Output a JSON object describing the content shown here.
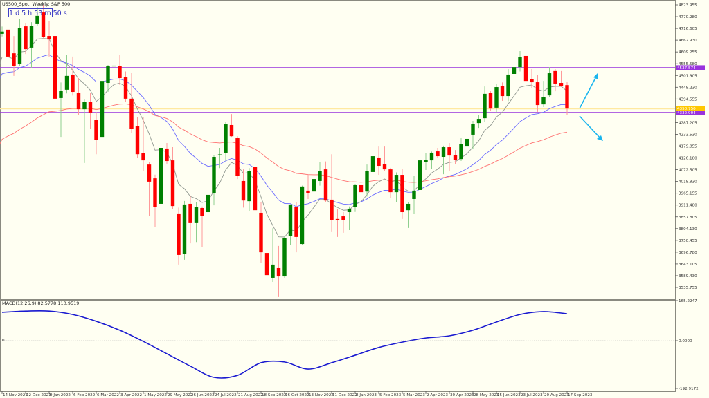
{
  "header": {
    "title": "US500_Spot, Weekly:  S&P 500",
    "countdown": "1 d 5 h 53 m 50 s"
  },
  "colors": {
    "background": "#fffff2",
    "bull": "#008000",
    "bull_wick": "#8fcf8f",
    "bear": "#ff0000",
    "bear_wick": "#ff9a9a",
    "level_line": "#9933dd",
    "bid_line": "#ffe9a0",
    "ma_fast": "#909890",
    "ma_mid": "#6a6aff",
    "ma_slow": "#ff7070",
    "macd": "#1a1ad0",
    "arrow": "#19b5ee"
  },
  "chart_data": {
    "type": "candlestick",
    "timeframe": "Weekly",
    "ylim": [
      3535.755,
      4823.955
    ],
    "y_tick_labels": [
      "4823.955",
      "4770.280",
      "4716.605",
      "4662.930",
      "4609.255",
      "4555.580",
      "4501.905",
      "4448.230",
      "4394.555",
      "4287.205",
      "4233.530",
      "4179.855",
      "4126.180",
      "4072.505",
      "4018.830",
      "3965.155",
      "3911.480",
      "3857.805",
      "3804.130",
      "3750.455",
      "3696.780",
      "3643.105",
      "3589.430",
      "3535.755"
    ],
    "x_tick_labels": [
      "14 Nov 2021",
      "12 Dec 2021",
      "9 Jan 2022",
      "6 Feb 2022",
      "6 Mar 2022",
      "3 Apr 2022",
      "1 May 2022",
      "29 May 2022",
      "26 Jun 2022",
      "24 Jul 2022",
      "21 Aug 2022",
      "18 Sep 2022",
      "16 Oct 2022",
      "13 Nov 2022",
      "11 Dec 2022",
      "8 Jan 2023",
      "5 Feb 2023",
      "5 Mar 2023",
      "2 Apr 2023",
      "30 Apr 2023",
      "28 May 2023",
      "25 Jun 2023",
      "23 Jul 2023",
      "20 Aug 2023",
      "17 Sep 2023"
    ],
    "ohlc": [
      [
        4692,
        4725,
        4680,
        4702
      ],
      [
        4711,
        4752,
        4572,
        4588
      ],
      [
        4603,
        4682,
        4500,
        4544
      ],
      [
        4553,
        4761,
        4545,
        4720
      ],
      [
        4726,
        4740,
        4600,
        4622
      ],
      [
        4629,
        4745,
        4534,
        4729
      ],
      [
        4736,
        4814,
        4730,
        4774
      ],
      [
        4789,
        4824,
        4670,
        4679
      ],
      [
        4682,
        4751,
        4588,
        4666
      ],
      [
        4682,
        4690,
        4390,
        4396
      ],
      [
        4399,
        4470,
        4222,
        4433
      ],
      [
        4437,
        4594,
        4420,
        4500
      ],
      [
        4506,
        4588,
        4410,
        4427
      ],
      [
        4424,
        4490,
        4323,
        4348
      ],
      [
        4348,
        4392,
        4103,
        4383
      ],
      [
        4383,
        4421,
        4257,
        4333
      ],
      [
        4301,
        4335,
        4143,
        4207
      ],
      [
        4222,
        4480,
        4140,
        4477
      ],
      [
        4468,
        4550,
        4427,
        4544
      ],
      [
        4545,
        4641,
        4509,
        4547
      ],
      [
        4544,
        4597,
        4459,
        4490
      ],
      [
        4496,
        4520,
        4383,
        4396
      ],
      [
        4396,
        4515,
        4240,
        4257
      ],
      [
        4270,
        4311,
        4125,
        4143
      ],
      [
        4147,
        4311,
        4065,
        4115
      ],
      [
        4096,
        4106,
        3860,
        4018
      ],
      [
        4033,
        4050,
        3813,
        3904
      ],
      [
        3917,
        4180,
        3876,
        4172
      ],
      [
        4169,
        4194,
        4100,
        4112
      ],
      [
        4115,
        4175,
        3895,
        3907
      ],
      [
        3873,
        3900,
        3640,
        3684
      ],
      [
        3687,
        3930,
        3662,
        3914
      ],
      [
        3917,
        3951,
        3737,
        3829
      ],
      [
        3829,
        3923,
        3743,
        3904
      ],
      [
        3898,
        3905,
        3721,
        3863
      ],
      [
        3879,
        4014,
        3819,
        3958
      ],
      [
        3967,
        4140,
        3910,
        4131
      ],
      [
        4138,
        4172,
        4080,
        4142
      ],
      [
        4150,
        4290,
        4112,
        4279
      ],
      [
        4276,
        4326,
        4222,
        4225
      ],
      [
        4216,
        4225,
        4030,
        4043
      ],
      [
        4021,
        4074,
        3900,
        3932
      ],
      [
        3929,
        4080,
        3885,
        4068
      ],
      [
        4084,
        4159,
        3838,
        3888
      ],
      [
        3876,
        3923,
        3646,
        3696
      ],
      [
        3693,
        3740,
        3583,
        3592
      ],
      [
        3580,
        3806,
        3561,
        3640
      ],
      [
        3624,
        3725,
        3492,
        3586
      ],
      [
        3586,
        3769,
        3580,
        3762
      ],
      [
        3772,
        3915,
        3728,
        3914
      ],
      [
        3904,
        3923,
        3696,
        3766
      ],
      [
        3734,
        4000,
        3730,
        3996
      ],
      [
        3977,
        4049,
        3939,
        3967
      ],
      [
        3973,
        4049,
        3930,
        4030
      ],
      [
        4021,
        4106,
        4000,
        4065
      ],
      [
        4074,
        4110,
        3925,
        3932
      ],
      [
        3936,
        4143,
        3788,
        3844
      ],
      [
        3848,
        3895,
        3766,
        3844
      ],
      [
        3860,
        3879,
        3785,
        3844
      ],
      [
        3879,
        3905,
        3797,
        3895
      ],
      [
        3904,
        4005,
        3880,
        4002
      ],
      [
        4002,
        4018,
        3885,
        3970
      ],
      [
        3973,
        4096,
        3950,
        4068
      ],
      [
        4062,
        4197,
        3996,
        4134
      ],
      [
        4128,
        4178,
        4049,
        4090
      ],
      [
        4099,
        4178,
        4065,
        4074
      ],
      [
        4074,
        4081,
        3942,
        3970
      ],
      [
        3970,
        4060,
        3923,
        4049
      ],
      [
        4049,
        4075,
        3848,
        3879
      ],
      [
        3888,
        3925,
        3807,
        3917
      ],
      [
        3939,
        4043,
        3870,
        3977
      ],
      [
        3980,
        4120,
        3955,
        4115
      ],
      [
        4106,
        4147,
        4071,
        4118
      ],
      [
        4115,
        4155,
        4077,
        4150
      ],
      [
        4156,
        4172,
        4128,
        4134
      ],
      [
        4131,
        4182,
        4052,
        4175
      ],
      [
        4175,
        4194,
        4065,
        4137
      ],
      [
        4140,
        4162,
        4099,
        4118
      ],
      [
        4121,
        4219,
        4112,
        4188
      ],
      [
        4178,
        4230,
        4106,
        4213
      ],
      [
        4232,
        4295,
        4169,
        4282
      ],
      [
        4285,
        4320,
        4263,
        4304
      ],
      [
        4307,
        4452,
        4290,
        4418
      ],
      [
        4421,
        4430,
        4342,
        4351
      ],
      [
        4355,
        4465,
        4333,
        4449
      ],
      [
        4455,
        4470,
        4386,
        4408
      ],
      [
        4408,
        4531,
        4385,
        4506
      ],
      [
        4509,
        4585,
        4500,
        4540
      ],
      [
        4540,
        4613,
        4520,
        4585
      ],
      [
        4591,
        4603,
        4470,
        4477
      ],
      [
        4484,
        4531,
        4443,
        4471
      ],
      [
        4471,
        4506,
        4336,
        4367
      ],
      [
        4370,
        4477,
        4358,
        4405
      ],
      [
        4411,
        4540,
        4405,
        4512
      ],
      [
        4522,
        4531,
        4430,
        4465
      ],
      [
        4468,
        4522,
        4449,
        4455
      ],
      [
        4458,
        4474,
        4323,
        4351
      ]
    ],
    "moving_averages": [
      {
        "color_key": "ma_fast",
        "start_value": 4553
      },
      {
        "color_key": "ma_mid",
        "start_value": 4490
      },
      {
        "color_key": "ma_slow",
        "start_value": 4191
      }
    ],
    "levels": [
      {
        "value": 4537.574,
        "label": "4537.574",
        "kind": "resistance"
      },
      {
        "value": 4332.904,
        "label": "4332.904",
        "kind": "support"
      }
    ],
    "bid": {
      "value": 4350.75,
      "label": "4350.750"
    },
    "annotations": [
      "arrow-up",
      "arrow-down"
    ],
    "grid": false
  },
  "macd": {
    "title": "MACD(12,26,9) 82.5778 110.9519",
    "ylim": [
      -192.9172,
      165.2247
    ],
    "y_tick_labels": [
      "165.2247",
      "0.0000",
      "-192.9172"
    ],
    "zero_label": "0",
    "values_at_x_ticks": [
      117,
      122,
      122,
      108,
      80,
      43,
      -3,
      -54,
      -105,
      -151,
      -143,
      -91,
      -88,
      -117,
      -91,
      -60,
      -28,
      -6,
      11,
      20,
      43,
      77,
      108,
      120,
      111
    ]
  }
}
